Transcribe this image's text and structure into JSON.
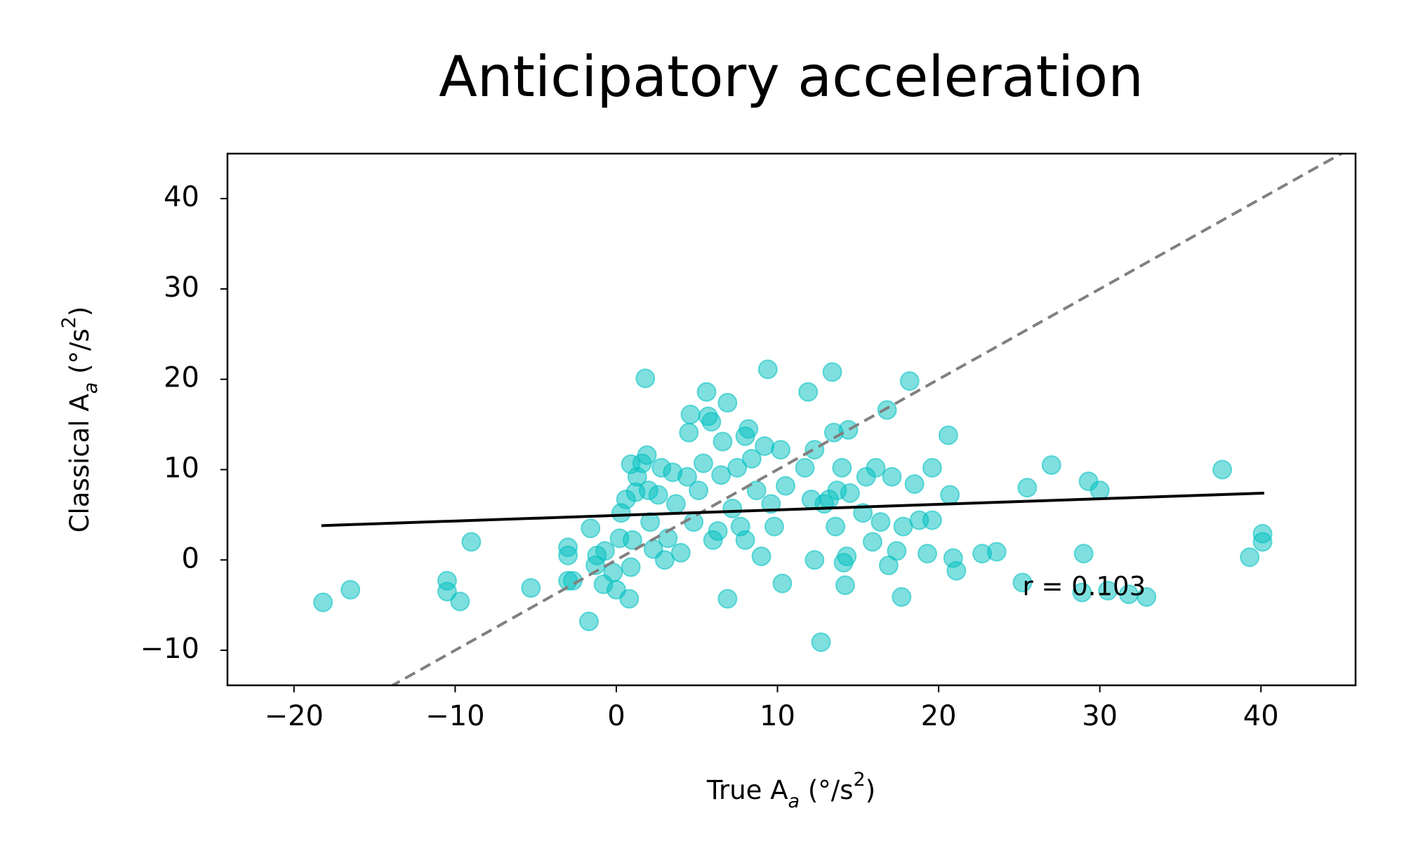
{
  "chart_data": {
    "type": "scatter",
    "title": "Anticipatory acceleration",
    "xlabel": [
      "True A",
      "a",
      " (°/s",
      "2",
      ")"
    ],
    "ylabel": [
      "Classical A",
      "a",
      " (°/s",
      "2",
      ")"
    ],
    "x": [
      -18.2,
      -16.5,
      -10.5,
      -10.5,
      -9.7,
      -9.0,
      -5.3,
      -3.0,
      -3.0,
      -3.0,
      -2.7,
      -1.7,
      -1.6,
      -1.3,
      -1.2,
      -0.8,
      -0.7,
      -0.2,
      0,
      0.2,
      0.3,
      0.6,
      0.8,
      0.9,
      0.9,
      1.0,
      1.2,
      1.3,
      1.6,
      1.8,
      1.9,
      2.0,
      2.1,
      2.3,
      2.6,
      2.8,
      3.0,
      3.2,
      3.5,
      3.7,
      4.0,
      4.4,
      4.6,
      4.5,
      4.8,
      5.1,
      5.4,
      5.6,
      5.7,
      5.9,
      6.0,
      6.3,
      6.5,
      6.6,
      6.9,
      6.9,
      7.2,
      7.5,
      7.7,
      8.0,
      8.0,
      8.2,
      8.4,
      8.7,
      9.0,
      9.2,
      9.4,
      9.6,
      9.8,
      10.2,
      10.3,
      10.5,
      11.7,
      11.9,
      12.1,
      12.3,
      12.3,
      12.7,
      12.9,
      13.2,
      13.4,
      13.5,
      13.6,
      13.7,
      14.0,
      14.1,
      14.2,
      14.3,
      14.4,
      14.5,
      15.3,
      15.5,
      15.9,
      16.1,
      16.4,
      16.8,
      16.9,
      17.1,
      17.4,
      17.7,
      17.8,
      18.2,
      18.5,
      18.8,
      19.3,
      19.6,
      19.6,
      20.6,
      20.7,
      20.9,
      21.1,
      22.7,
      23.6,
      25.2,
      25.5,
      27.0,
      28.9,
      29.0,
      29.3,
      30.0,
      30.5,
      31.8,
      32.9,
      37.6,
      39.3,
      40.1,
      40.1
    ],
    "values": [
      -4.7,
      -3.3,
      -2.3,
      -3.5,
      -4.6,
      2.0,
      -3.1,
      1.4,
      0.5,
      -2.3,
      -2.3,
      -6.8,
      3.5,
      -0.6,
      0.5,
      -2.7,
      1.0,
      -1.4,
      -3.3,
      2.4,
      5.2,
      6.7,
      -4.3,
      -0.8,
      10.6,
      2.2,
      7.5,
      9.2,
      10.7,
      20.1,
      11.6,
      7.7,
      4.2,
      1.2,
      7.2,
      10.2,
      0,
      2.4,
      9.7,
      6.2,
      0.8,
      9.2,
      16.1,
      14.1,
      4.2,
      7.7,
      10.7,
      18.6,
      15.9,
      15.3,
      2.2,
      3.2,
      9.4,
      13.1,
      -4.3,
      17.4,
      5.7,
      10.2,
      3.7,
      2.2,
      13.7,
      14.5,
      11.2,
      7.7,
      0.4,
      12.6,
      21.1,
      6.2,
      3.7,
      12.2,
      -2.6,
      8.2,
      10.2,
      18.6,
      6.7,
      0,
      12.2,
      -9.1,
      6.2,
      6.7,
      20.8,
      14.1,
      3.7,
      7.7,
      10.2,
      -0.3,
      -2.8,
      0.4,
      14.4,
      7.4,
      5.2,
      9.2,
      2.0,
      10.2,
      4.2,
      16.6,
      -0.6,
      9.2,
      1.0,
      -4.1,
      3.7,
      19.8,
      8.4,
      4.4,
      0.7,
      10.2,
      4.4,
      13.8,
      7.2,
      0.2,
      -1.2,
      0.7,
      0.9,
      -2.5,
      8.0,
      10.5,
      -3.6,
      0.7,
      8.7,
      7.7,
      -3.4,
      -3.8,
      -4.1,
      10.0,
      0.3,
      2.9,
      2.0
    ],
    "color": "#00bfbf",
    "fit_line": {
      "x": [
        -18.3,
        40.2
      ],
      "y": [
        3.8,
        7.4
      ],
      "color": "#000000"
    },
    "reference_line": {
      "x": [
        -15,
        46
      ],
      "y": [
        -15,
        46
      ],
      "color": "#808080",
      "style": "dashed"
    },
    "annotation": {
      "text": "r = 0.103",
      "x": 25.2,
      "y": -3.1
    },
    "xlim": [
      -24.13,
      45.87
    ],
    "ylim": [
      -13.88,
      44.98
    ],
    "xticks": [
      {
        "value": -20,
        "label": "−20"
      },
      {
        "value": -10,
        "label": "−10"
      },
      0,
      10,
      20,
      30,
      40
    ],
    "yticks": [
      {
        "value": -10,
        "label": "−10"
      },
      0,
      10,
      20,
      30,
      40
    ],
    "grid": false
  }
}
